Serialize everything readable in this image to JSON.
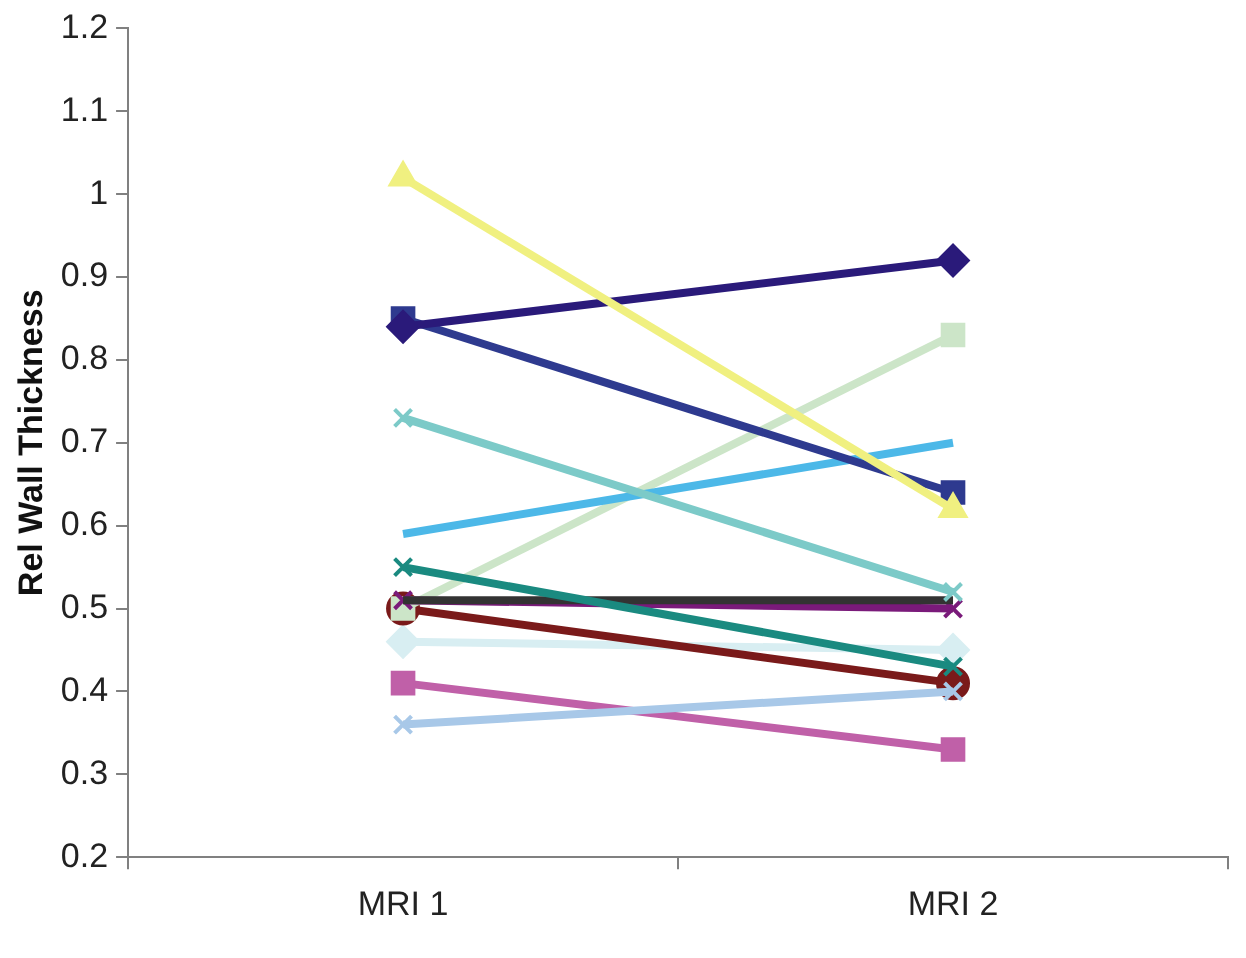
{
  "chart_data": {
    "type": "line",
    "ylabel": "Rel Wall Thickness",
    "categories": [
      "MRI 1",
      "MRI 2"
    ],
    "ylim": [
      0.2,
      1.2
    ],
    "yticks": [
      0.2,
      0.3,
      0.4,
      0.5,
      0.6,
      0.7,
      0.8,
      0.9,
      1,
      1.1,
      1.2
    ],
    "grid": false,
    "legend": false,
    "line_style": "solid",
    "series": [
      {
        "color": "#f0f080",
        "marker": "triangle",
        "values": [
          1.02,
          0.62
        ]
      },
      {
        "color": "#2a1a7a",
        "marker": "diamond",
        "values": [
          0.84,
          0.92
        ]
      },
      {
        "color": "#2e3a8f",
        "marker": "square",
        "values": [
          0.85,
          0.64
        ]
      },
      {
        "color": "#7ccac8",
        "marker": "cross",
        "values": [
          0.73,
          0.52
        ]
      },
      {
        "color": "#4cb8e8",
        "marker": "none",
        "values": [
          0.59,
          0.7
        ]
      },
      {
        "color": "#1a8a80",
        "marker": "cross",
        "values": [
          0.55,
          0.43
        ]
      },
      {
        "color": "#333333",
        "marker": "none",
        "values": [
          0.51,
          0.51
        ]
      },
      {
        "color": "#7a1a7a",
        "marker": "cross",
        "values": [
          0.51,
          0.5
        ]
      },
      {
        "color": "#cce5c8",
        "marker": "square",
        "values": [
          0.5,
          0.83
        ]
      },
      {
        "color": "#a8c8e8",
        "marker": "cross",
        "values": [
          0.36,
          0.4
        ]
      },
      {
        "color": "#7a1a1a",
        "marker": "circle",
        "values": [
          0.5,
          0.41
        ]
      },
      {
        "color": "#d8eef2",
        "marker": "diamond",
        "values": [
          0.46,
          0.45
        ]
      },
      {
        "color": "#c060a8",
        "marker": "square",
        "values": [
          0.41,
          0.33
        ]
      }
    ]
  }
}
